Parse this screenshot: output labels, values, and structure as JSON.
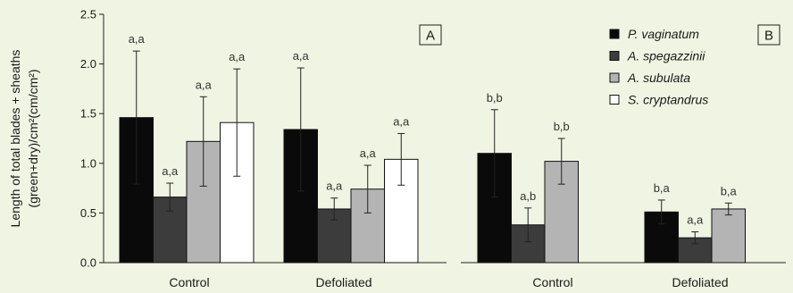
{
  "chart_data": {
    "type": "bar",
    "ylabel_line1": "Length of total blades + sheaths",
    "ylabel_line2": "(green+dry)/cm²(cm/cm²)",
    "ylim": [
      0,
      2.5
    ],
    "yticks": [
      "0.0",
      "0.5",
      "1.0",
      "1.5",
      "2.0",
      "2.5"
    ],
    "colors": {
      "P. vaginatum": "#0a0a0a",
      "A. spegazzinii": "#3c3c3c",
      "A. subulata": "#b4b4b4",
      "S. cryptandrus": "#ffffff"
    },
    "legend": [
      "P. vaginatum",
      "A. spegazzinii",
      "A. subulata",
      "S. cryptandrus"
    ],
    "legend_position": "top-right",
    "panels": [
      {
        "label": "A",
        "categories": [
          "Control",
          "Defoliated"
        ],
        "series": [
          {
            "name": "P. vaginatum",
            "values": [
              1.46,
              1.34
            ],
            "errors": [
              0.67,
              0.62
            ],
            "labels": [
              "a,a",
              "a,a"
            ]
          },
          {
            "name": "A. spegazzinii",
            "values": [
              0.66,
              0.54
            ],
            "errors": [
              0.14,
              0.11
            ],
            "labels": [
              "a,a",
              "a,a"
            ]
          },
          {
            "name": "A. subulata",
            "values": [
              1.22,
              0.74
            ],
            "errors": [
              0.45,
              0.24
            ],
            "labels": [
              "a,a",
              "a,a"
            ]
          },
          {
            "name": "S. cryptandrus",
            "values": [
              1.41,
              1.04
            ],
            "errors": [
              0.54,
              0.26
            ],
            "labels": [
              "a,a",
              "a,a"
            ]
          }
        ]
      },
      {
        "label": "B",
        "categories": [
          "Control",
          "Defoliated"
        ],
        "series": [
          {
            "name": "P. vaginatum",
            "values": [
              1.1,
              0.51
            ],
            "errors": [
              0.44,
              0.12
            ],
            "labels": [
              "b,b",
              "b,a"
            ]
          },
          {
            "name": "A. spegazzinii",
            "values": [
              0.38,
              0.25
            ],
            "errors": [
              0.17,
              0.06
            ],
            "labels": [
              "a,b",
              "a,a"
            ]
          },
          {
            "name": "A. subulata",
            "values": [
              1.02,
              0.54
            ],
            "errors": [
              0.23,
              0.06
            ],
            "labels": [
              "b,b",
              "b,a"
            ]
          }
        ]
      }
    ]
  }
}
